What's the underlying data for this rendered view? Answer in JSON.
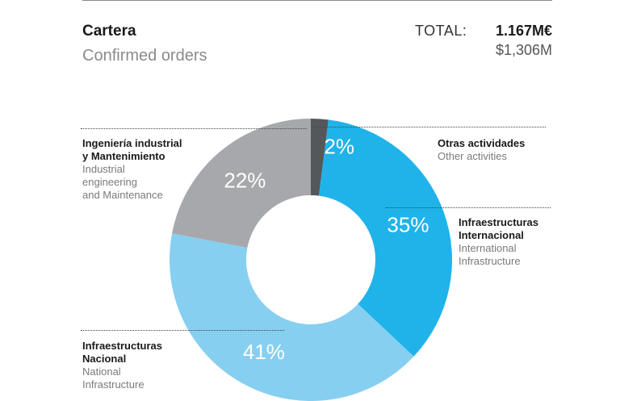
{
  "header": {
    "title": "Cartera",
    "subtitle": "Confirmed orders",
    "total_label": "TOTAL:",
    "total_value": "1.167M€",
    "total_usd": "$1,306M"
  },
  "chart_data": {
    "type": "pie",
    "variant": "donut",
    "title": "Cartera",
    "subtitle": "Confirmed orders",
    "slices": [
      {
        "label_es": "Otras actividades",
        "label_en": "Other activities",
        "value": 2,
        "pct_label": "2%",
        "color": "#55585b"
      },
      {
        "label_es": "Infraestructuras Internacional",
        "label_en": "International Infrastructure",
        "value": 35,
        "pct_label": "35%",
        "color": "#1fb3ea"
      },
      {
        "label_es": "Infraestructuras Nacional",
        "label_en": "National Infrastructure",
        "value": 41,
        "pct_label": "41%",
        "color": "#87cff0"
      },
      {
        "label_es": "Ingeniería industrial y Mantenimiento",
        "label_en": "Industrial engineering and Maintenance",
        "value": 22,
        "pct_label": "22%",
        "color": "#a6a8ab"
      }
    ]
  },
  "labels": {
    "otras": {
      "es": "Otras actividades",
      "en": "Other activities"
    },
    "intl": {
      "es1": "Infraestructuras",
      "es2": "Internacional",
      "en1": "International",
      "en2": "Infrastructure"
    },
    "nacional": {
      "es1": "Infraestructuras",
      "es2": "Nacional",
      "en1": "National",
      "en2": "Infrastructure"
    },
    "ingenieria": {
      "es1": "Ingeniería industrial",
      "es2": "y Mantenimiento",
      "en1": "Industrial",
      "en2": "engineering",
      "en3": "and Maintenance"
    }
  }
}
